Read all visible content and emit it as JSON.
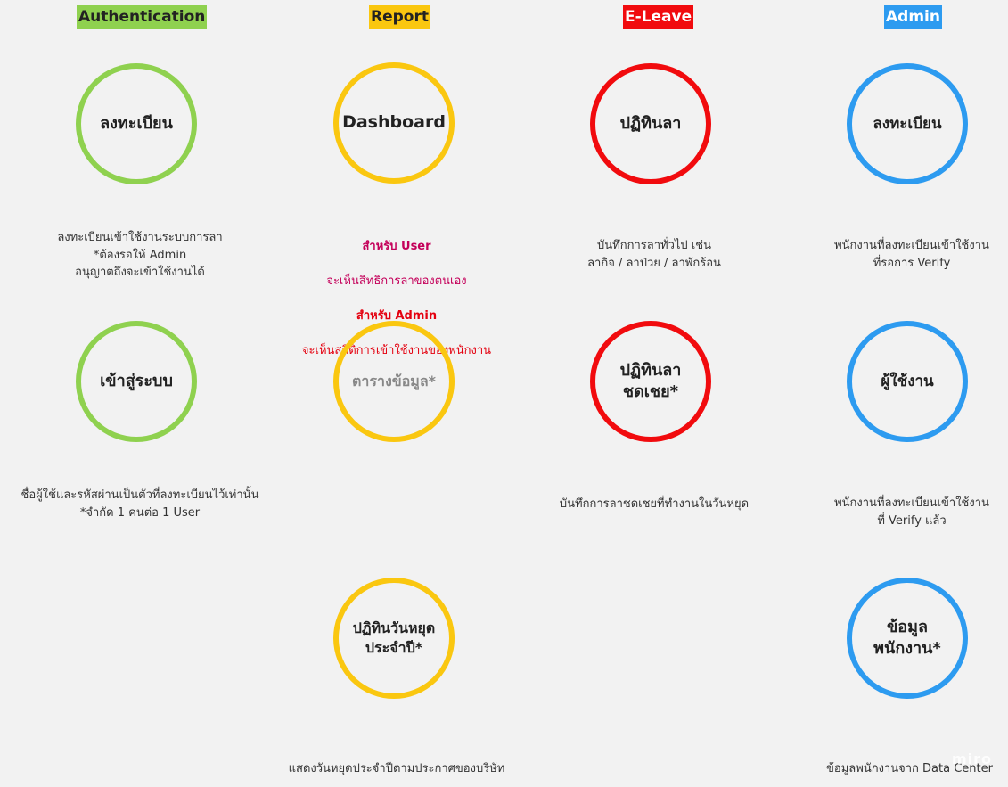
{
  "columns": [
    {
      "title": "Authentication",
      "color": "#8fd14f"
    },
    {
      "title": "Report",
      "color": "#fac710"
    },
    {
      "title": "E-Leave",
      "color": "#f10b0e"
    },
    {
      "title": "Admin",
      "color": "#2d9bf0"
    }
  ],
  "auth": {
    "register": {
      "label": "ลงทะเบียน",
      "desc": "ลงทะเบียนเข้าใช้งานระบบการลา\n*ต้องรอให้ Admin\nอนุญาตถึงจะเข้าใช้งานได้"
    },
    "login": {
      "label": "เข้าสู่ระบบ",
      "desc": "ชื่อผู้ใช้และรหัสผ่านเป็นตัวที่ลงทะเบียนไว้เท่านั้น\n*จำกัด 1 คนต่อ 1 User"
    }
  },
  "report": {
    "dashboard": {
      "label": "Dashboard",
      "user_title": "สำหรับ User",
      "user_desc": "จะเห็นสิทธิการลาของตนเอง",
      "admin_title": "สำหรับ Admin",
      "admin_desc": "จะเห็นสถิติการเข้าใช้งานของพนักงาน"
    },
    "table": {
      "label": "ตารางข้อมูล*"
    },
    "holiday": {
      "label": "ปฏิทินวันหยุด\nประจำปี*",
      "desc": "แสดงวันหยุดประจำปีตามประกาศของบริษัท"
    }
  },
  "eleave": {
    "calendar": {
      "label": "ปฏิทินลา",
      "desc": "บันทึกการลาทั่วไป เช่น\nลากิจ / ลาป่วย / ลาพักร้อน"
    },
    "comp": {
      "label": "ปฏิทินลา\nชดเชย*",
      "desc": "บันทึกการลาชดเชยที่ทำงานในวันหยุด"
    }
  },
  "admin": {
    "register": {
      "label": "ลงทะเบียน",
      "desc": "พนักงานที่ลงทะเบียนเข้าใช้งาน\nที่รอการ Verify"
    },
    "users": {
      "label": "ผู้ใช้งาน",
      "desc": "พนักงานที่ลงทะเบียนเข้าใช้งาน\nที่ Verify แล้ว"
    },
    "employee": {
      "label": "ข้อมูล\nพนักงาน*",
      "desc": "ข้อมูลพนักงานจาก Data Center"
    }
  },
  "watermark": "miro"
}
